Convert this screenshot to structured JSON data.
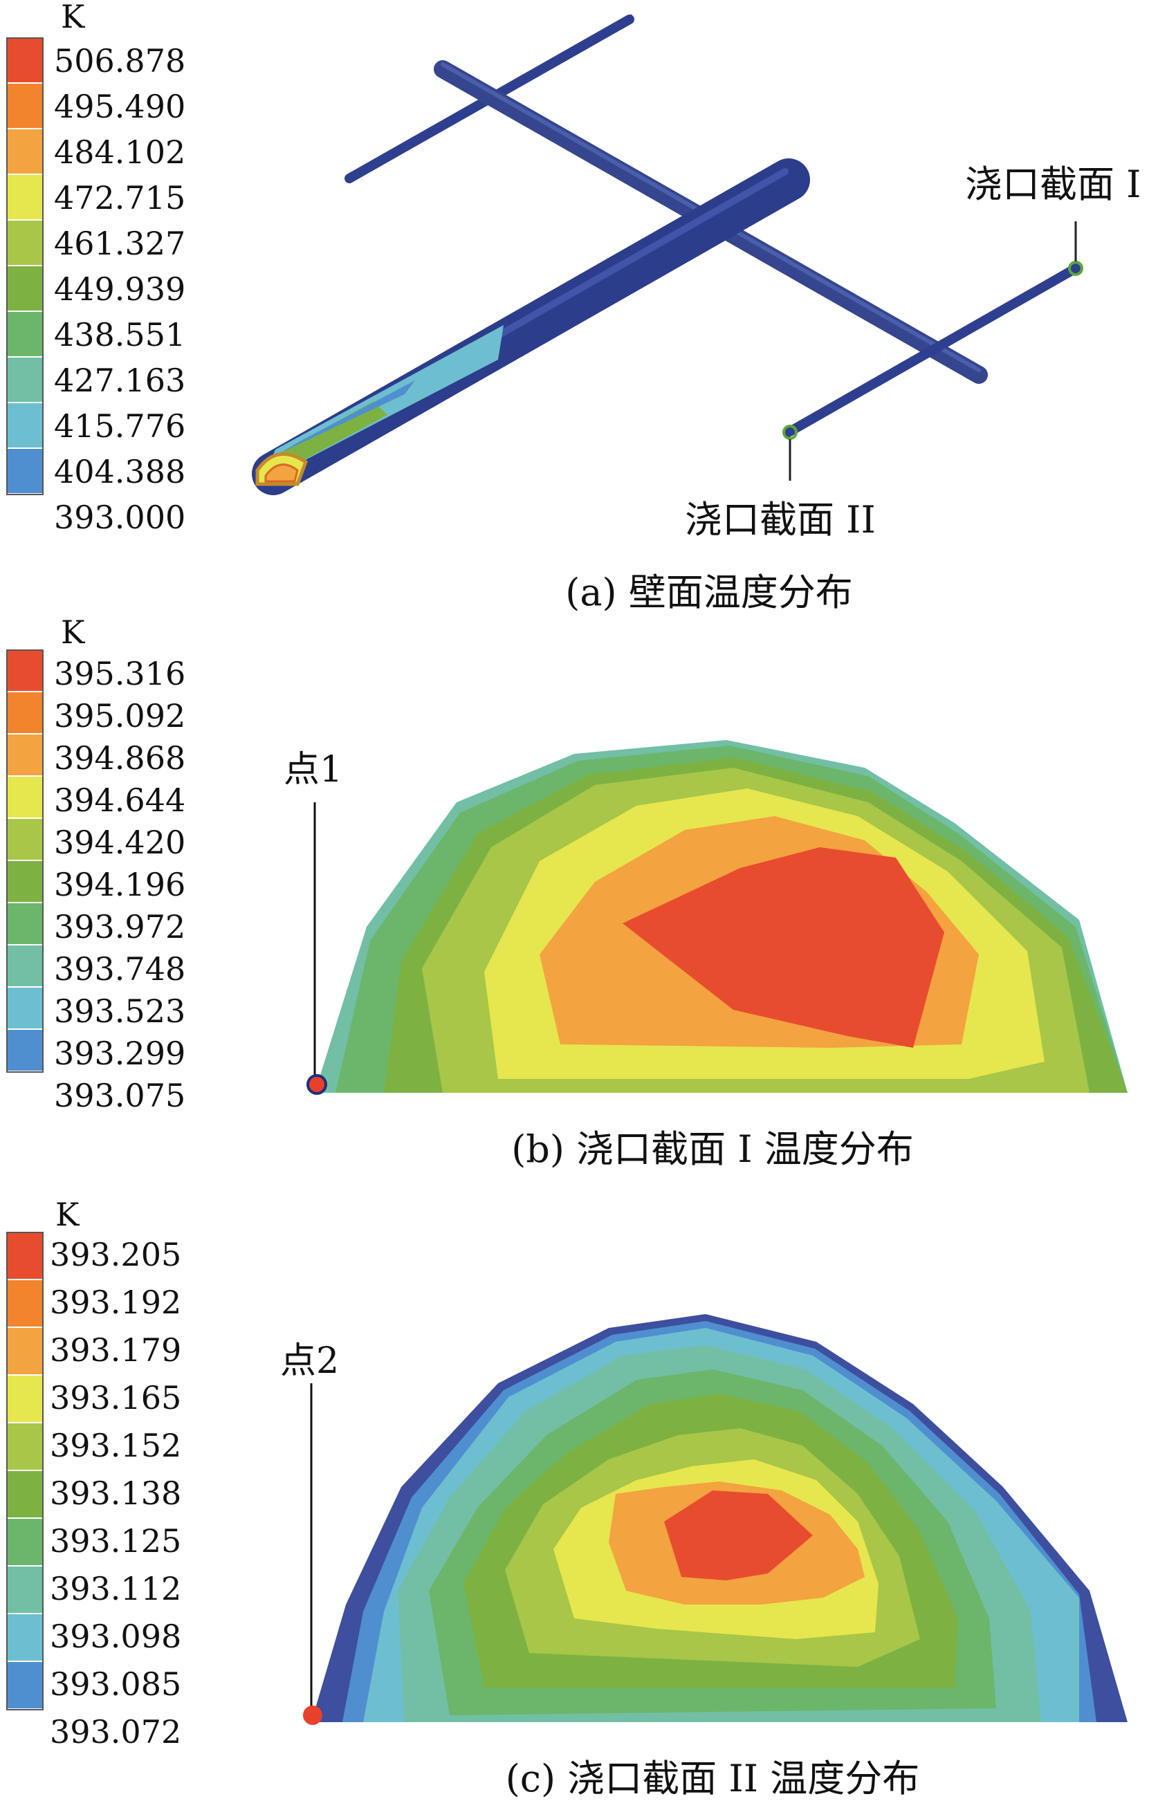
{
  "colors": [
    "#3d4f9e",
    "#4f8fd0",
    "#6dbfcf",
    "#72bfa5",
    "#6bb66a",
    "#7db242",
    "#a8c648",
    "#e6e64e",
    "#f3a33f",
    "#f1842d",
    "#e84c2f"
  ],
  "panels": [
    {
      "unit": "K",
      "scale": [
        "506.878",
        "495.490",
        "484.102",
        "472.715",
        "461.327",
        "449.939",
        "438.551",
        "427.163",
        "415.776",
        "404.388",
        "393.000"
      ],
      "caption": "(a) 壁面温度分布",
      "callouts": [
        "浇口截面 I",
        "浇口截面 II"
      ]
    },
    {
      "unit": "K",
      "scale": [
        "395.316",
        "395.092",
        "394.868",
        "394.644",
        "394.420",
        "394.196",
        "393.972",
        "393.748",
        "393.523",
        "393.299",
        "393.075"
      ],
      "caption": "(b) 浇口截面 I 温度分布",
      "point_label": "点1"
    },
    {
      "unit": "K",
      "scale": [
        "393.205",
        "393.192",
        "393.179",
        "393.165",
        "393.152",
        "393.138",
        "393.125",
        "393.112",
        "393.098",
        "393.085",
        "393.072"
      ],
      "caption": "(c) 浇口截面 II 温度分布",
      "point_label": "点2"
    }
  ]
}
